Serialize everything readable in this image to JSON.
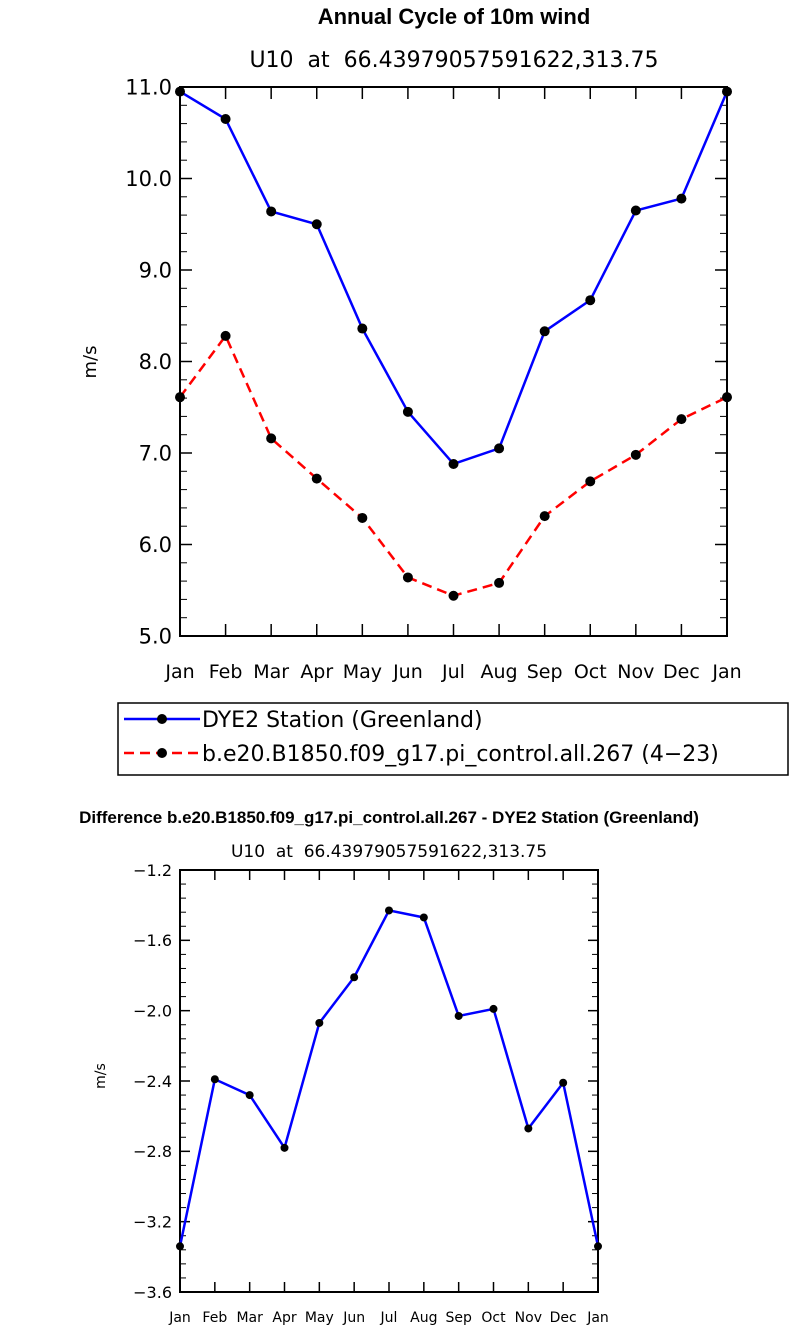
{
  "chart_data": [
    {
      "type": "line",
      "title": "Annual Cycle of 10m wind",
      "subtitle": "U10  at  66.43979057591622,313.75",
      "ylabel": "m/s",
      "xlabel": "",
      "categories": [
        "Jan",
        "Feb",
        "Mar",
        "Apr",
        "May",
        "Jun",
        "Jul",
        "Aug",
        "Sep",
        "Oct",
        "Nov",
        "Dec",
        "Jan"
      ],
      "ylim": [
        5.0,
        11.0
      ],
      "yticks": [
        "5.0",
        "6.0",
        "7.0",
        "8.0",
        "9.0",
        "10.0",
        "11.0"
      ],
      "legend_position": "bottom",
      "series": [
        {
          "name": "DYE2 Station (Greenland)",
          "color": "#0000ff",
          "dash": "solid",
          "values": [
            10.95,
            10.65,
            9.64,
            9.5,
            8.36,
            7.45,
            6.88,
            7.05,
            8.33,
            8.67,
            9.65,
            9.78,
            10.95
          ]
        },
        {
          "name": "b.e20.B1850.f09_g17.pi_control.all.267 (4−23)",
          "color": "#ff0000",
          "dash": "dashed",
          "values": [
            7.61,
            8.28,
            7.16,
            6.72,
            6.29,
            5.64,
            5.44,
            5.58,
            6.31,
            6.69,
            6.98,
            7.37,
            7.61
          ]
        }
      ]
    },
    {
      "type": "line",
      "title": "Difference b.e20.B1850.f09_g17.pi_control.all.267 - DYE2 Station (Greenland)",
      "subtitle": "U10  at  66.43979057591622,313.75",
      "ylabel": "m/s",
      "xlabel": "",
      "categories": [
        "Jan",
        "Feb",
        "Mar",
        "Apr",
        "May",
        "Jun",
        "Jul",
        "Aug",
        "Sep",
        "Oct",
        "Nov",
        "Dec",
        "Jan"
      ],
      "ylim": [
        -3.6,
        -1.2
      ],
      "yticks": [
        "−3.6",
        "−3.2",
        "−2.8",
        "−2.4",
        "−2.0",
        "−1.6",
        "−1.2"
      ],
      "series": [
        {
          "color": "#0000ff",
          "dash": "solid",
          "values": [
            -3.34,
            -2.39,
            -2.48,
            -2.78,
            -2.07,
            -1.81,
            -1.43,
            -1.47,
            -2.03,
            -1.99,
            -2.67,
            -2.41,
            -3.34
          ]
        }
      ]
    }
  ]
}
